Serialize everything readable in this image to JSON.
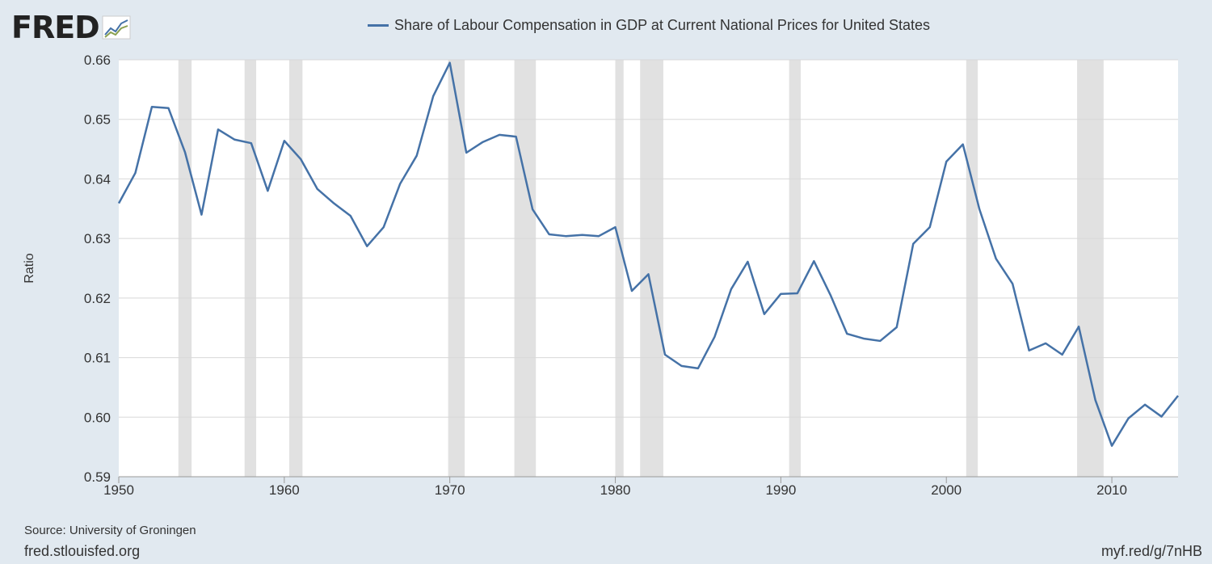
{
  "logo": {
    "text": "FRED"
  },
  "footer": {
    "source": "Source: University of Groningen",
    "site": "fred.stlouisfed.org",
    "short_url": "myf.red/g/7nHB"
  },
  "colors": {
    "series": "#4572a7",
    "recession": "#e1e1e1",
    "grid": "#d8d8d8",
    "background": "#e1e9f0"
  },
  "chart_data": {
    "type": "line",
    "title": "",
    "legend": "top-center",
    "xlabel": "",
    "ylabel": "Ratio",
    "xlim": [
      1950,
      2014
    ],
    "ylim": [
      0.59,
      0.66
    ],
    "grid": true,
    "xticks": [
      "1950",
      "1960",
      "1970",
      "1980",
      "1990",
      "2000",
      "2010"
    ],
    "yticks": [
      "0.59",
      "0.60",
      "0.61",
      "0.62",
      "0.63",
      "0.64",
      "0.65",
      "0.66"
    ],
    "series": [
      {
        "name": "Share of Labour Compensation in GDP at Current National Prices for United States",
        "x": [
          1950,
          1951,
          1952,
          1953,
          1954,
          1955,
          1956,
          1957,
          1958,
          1959,
          1960,
          1961,
          1962,
          1963,
          1964,
          1965,
          1966,
          1967,
          1968,
          1969,
          1970,
          1971,
          1972,
          1973,
          1974,
          1975,
          1976,
          1977,
          1978,
          1979,
          1980,
          1981,
          1982,
          1983,
          1984,
          1985,
          1986,
          1987,
          1988,
          1989,
          1990,
          1991,
          1992,
          1993,
          1994,
          1995,
          1996,
          1997,
          1998,
          1999,
          2000,
          2001,
          2002,
          2003,
          2004,
          2005,
          2006,
          2007,
          2008,
          2009,
          2010,
          2011,
          2012,
          2013,
          2014
        ],
        "values": [
          0.6359,
          0.641,
          0.6521,
          0.6519,
          0.6445,
          0.634,
          0.6483,
          0.6466,
          0.646,
          0.638,
          0.6464,
          0.6433,
          0.6383,
          0.6359,
          0.6338,
          0.6287,
          0.6319,
          0.6392,
          0.6439,
          0.6539,
          0.6595,
          0.6444,
          0.6462,
          0.6474,
          0.6471,
          0.6349,
          0.6307,
          0.6304,
          0.6306,
          0.6304,
          0.6319,
          0.6212,
          0.624,
          0.6105,
          0.6086,
          0.6082,
          0.6135,
          0.6215,
          0.6261,
          0.6173,
          0.6207,
          0.6208,
          0.6262,
          0.6205,
          0.614,
          0.6132,
          0.6128,
          0.6151,
          0.6291,
          0.6319,
          0.6429,
          0.6458,
          0.6349,
          0.6266,
          0.6224,
          0.6112,
          0.6124,
          0.6105,
          0.6152,
          0.6029,
          0.5952,
          0.5998,
          0.6021,
          0.6001,
          0.6036
        ]
      }
    ],
    "recessions": [
      [
        1953.6,
        1954.4
      ],
      [
        1957.6,
        1958.3
      ],
      [
        1960.3,
        1961.1
      ],
      [
        1969.9,
        1970.9
      ],
      [
        1973.9,
        1975.2
      ],
      [
        1980.0,
        1980.5
      ],
      [
        1981.5,
        1982.9
      ],
      [
        1990.5,
        1991.2
      ],
      [
        2001.2,
        2001.9
      ],
      [
        2007.9,
        2009.5
      ]
    ]
  }
}
